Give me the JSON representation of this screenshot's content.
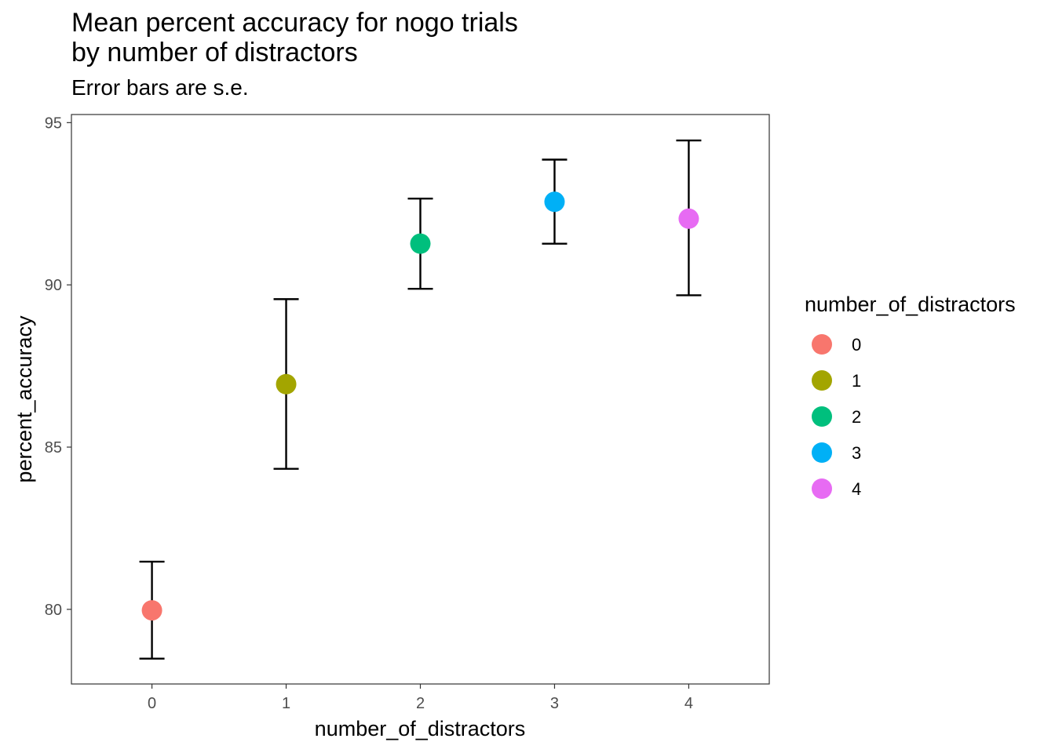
{
  "chart_data": {
    "type": "scatter",
    "title": "Mean percent accuracy for nogo trials\nby number of distractors",
    "subtitle": "Error bars are s.e.",
    "xlabel": "number_of_distractors",
    "ylabel": "percent_accuracy",
    "categories": [
      "0",
      "1",
      "2",
      "3",
      "4"
    ],
    "values": [
      79.97,
      86.94,
      91.27,
      92.56,
      92.04
    ],
    "error_low": [
      78.48,
      84.33,
      89.88,
      91.27,
      89.68
    ],
    "error_high": [
      81.47,
      89.56,
      92.66,
      93.86,
      94.45
    ],
    "colors": [
      "#F8766D",
      "#A3A500",
      "#00BF7D",
      "#00B0F6",
      "#E76BF3"
    ],
    "ylim": [
      77.7,
      95.25
    ],
    "yticks": [
      80,
      85,
      90,
      95
    ],
    "grid": false,
    "legend": {
      "title": "number_of_distractors",
      "position": "right",
      "entries": [
        "0",
        "1",
        "2",
        "3",
        "4"
      ]
    }
  }
}
